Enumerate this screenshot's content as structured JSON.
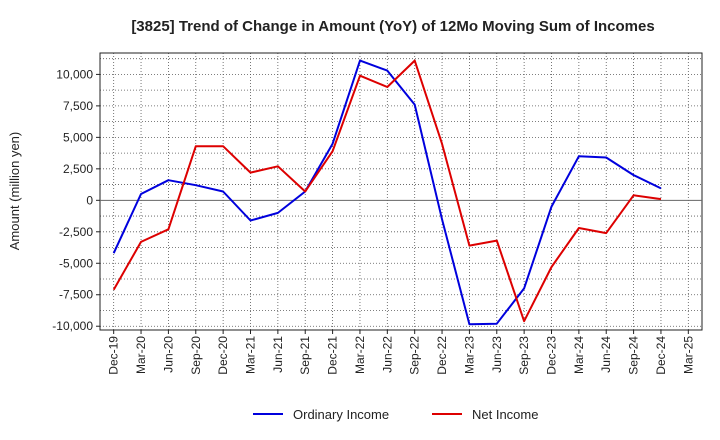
{
  "chart_data": {
    "type": "line",
    "title": "[3825]  Trend of Change in Amount (YoY) of 12Mo Moving Sum of Incomes",
    "ylabel": "Amount (million yen)",
    "xlabel": "",
    "x": [
      "Dec-19",
      "Mar-20",
      "Jun-20",
      "Sep-20",
      "Dec-20",
      "Mar-21",
      "Jun-21",
      "Sep-21",
      "Dec-21",
      "Mar-22",
      "Jun-22",
      "Sep-22",
      "Dec-22",
      "Mar-23",
      "Jun-23",
      "Sep-23",
      "Dec-23",
      "Mar-24",
      "Jun-24",
      "Sep-24",
      "Dec-24",
      "Mar-25"
    ],
    "ylim": [
      -10300,
      11700
    ],
    "yticks": [
      10000,
      7500,
      5000,
      2500,
      0,
      -2500,
      -5000,
      -7500,
      -10000
    ],
    "ytick_labels": [
      "10,000",
      "7,500",
      "5,000",
      "2,500",
      "0",
      "-2,500",
      "-5,000",
      "-7,500",
      "-10,000"
    ],
    "grid": true,
    "legend_position": "bottom",
    "series": [
      {
        "name": "Ordinary Income",
        "color": "#0000dd",
        "values": [
          -4200,
          500,
          1600,
          1200,
          700,
          -1600,
          -1000,
          700,
          4500,
          11100,
          10300,
          7600,
          -1500,
          -9850,
          -9800,
          -7000,
          -500,
          3500,
          3400,
          2000,
          950,
          null
        ]
      },
      {
        "name": "Net Income",
        "color": "#dd0000",
        "values": [
          -7100,
          -3300,
          -2300,
          4300,
          4300,
          2200,
          2700,
          700,
          3900,
          9900,
          9000,
          11100,
          4500,
          -3600,
          -3200,
          -9600,
          -5300,
          -2200,
          -2600,
          400,
          100,
          null
        ]
      }
    ]
  }
}
